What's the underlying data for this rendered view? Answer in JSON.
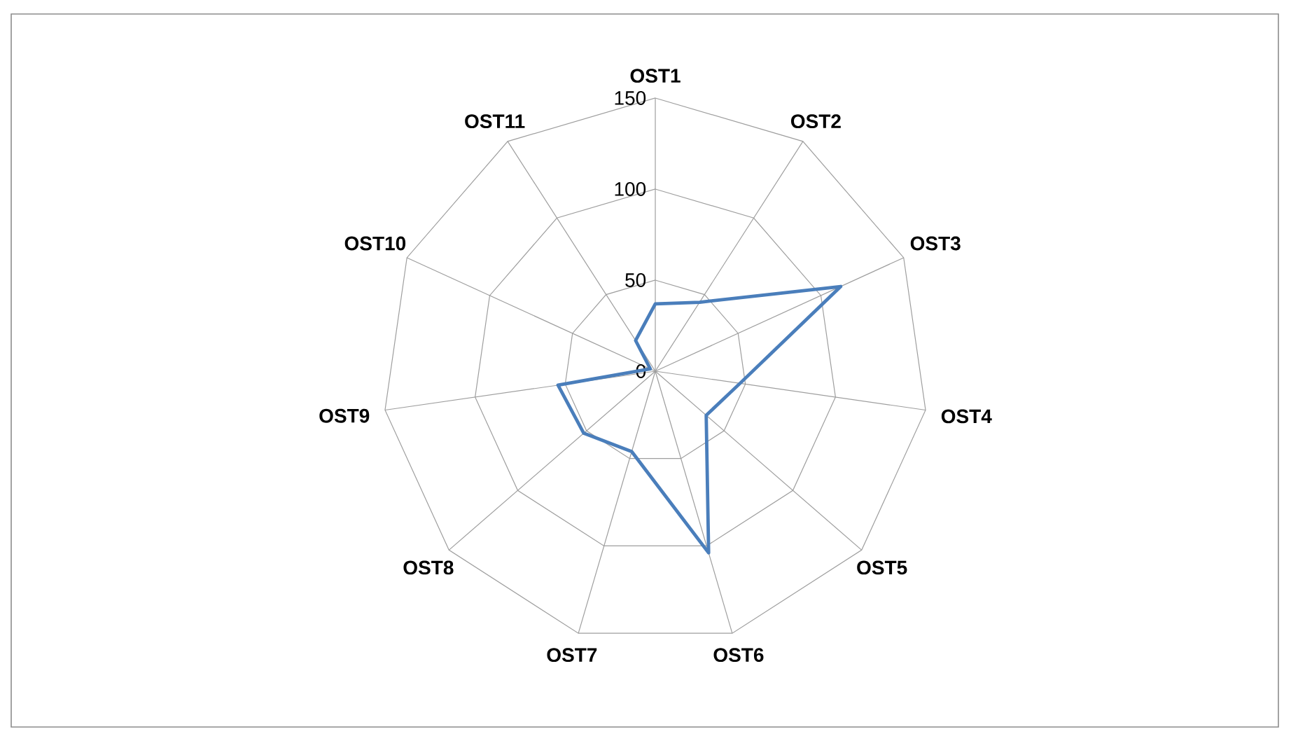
{
  "chart_data": {
    "type": "radar",
    "categories": [
      "OST1",
      "OST2",
      "OST3",
      "OST4",
      "OST5",
      "OST6",
      "OST7",
      "OST8",
      "OST9",
      "OST10",
      "OST11"
    ],
    "series": [
      {
        "color": "#4a7ebb",
        "values": [
          37,
          45,
          112,
          47,
          37,
          104,
          46,
          52,
          54,
          3,
          20
        ]
      }
    ],
    "ylim": [
      0,
      150
    ],
    "yticks": [
      0,
      50,
      100,
      150
    ],
    "grid": true
  }
}
